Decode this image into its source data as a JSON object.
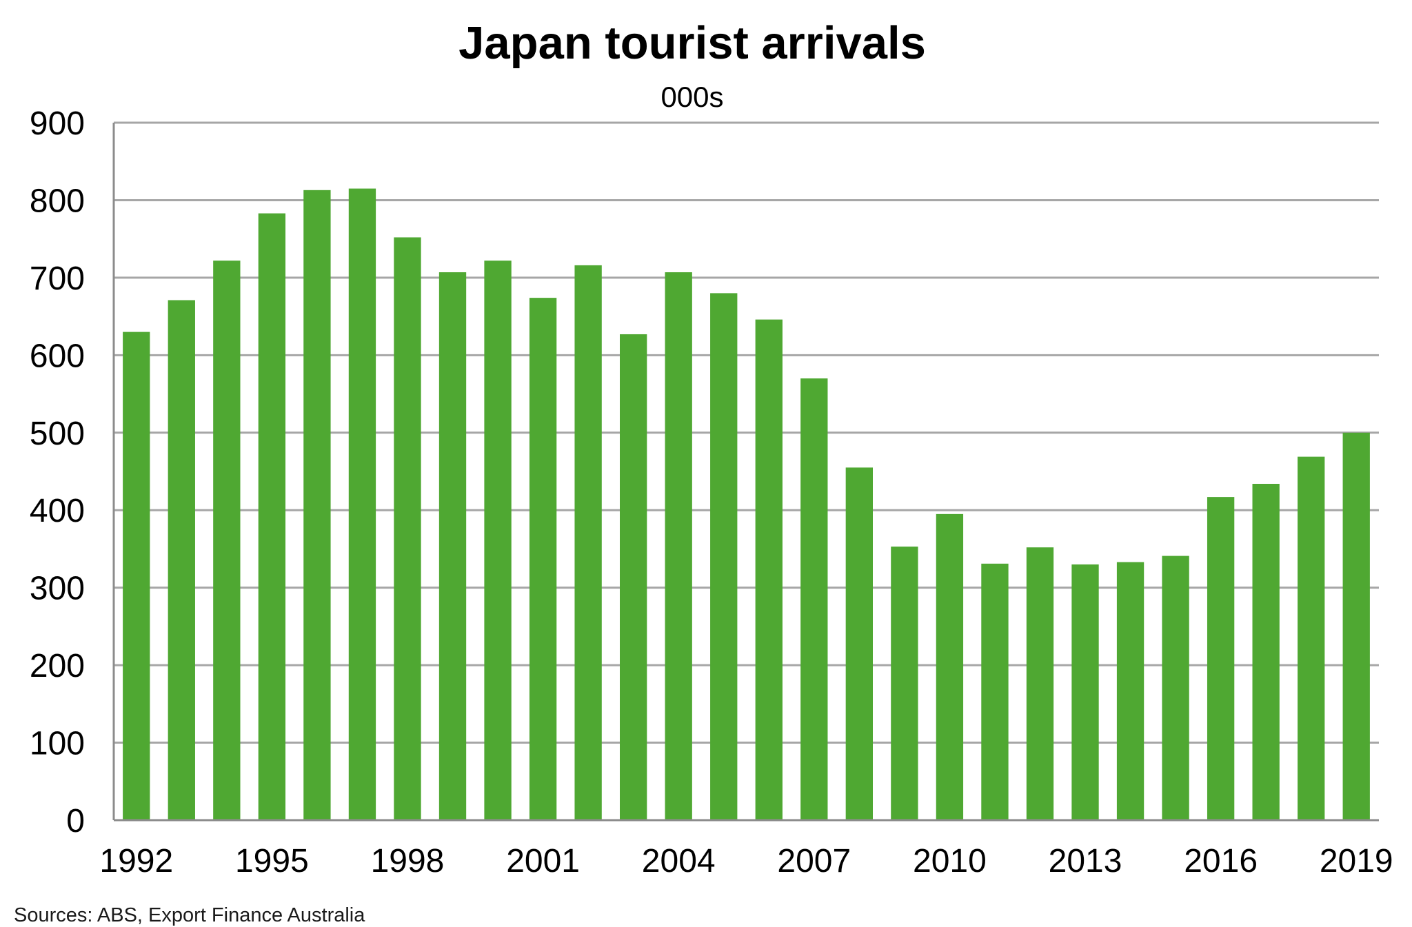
{
  "chart_data": {
    "type": "bar",
    "title": "Japan tourist arrivals",
    "subtitle": "000s",
    "xlabel": "",
    "ylabel": "",
    "ylim": [
      0,
      900
    ],
    "yticks": [
      0,
      100,
      200,
      300,
      400,
      500,
      600,
      700,
      800,
      900
    ],
    "xtick_labels": [
      "1992",
      "1995",
      "1998",
      "2001",
      "2004",
      "2007",
      "2010",
      "2013",
      "2016",
      "2019"
    ],
    "grid": true,
    "legend": "none",
    "bar_color": "#4fa832",
    "categories": [
      "1992",
      "1993",
      "1994",
      "1995",
      "1996",
      "1997",
      "1998",
      "1999",
      "2000",
      "2001",
      "2002",
      "2003",
      "2004",
      "2005",
      "2006",
      "2007",
      "2008",
      "2009",
      "2010",
      "2011",
      "2012",
      "2013",
      "2014",
      "2015",
      "2016",
      "2017",
      "2018",
      "2019"
    ],
    "values": [
      630,
      671,
      722,
      783,
      813,
      815,
      752,
      707,
      722,
      674,
      716,
      627,
      707,
      680,
      646,
      570,
      455,
      353,
      395,
      331,
      352,
      330,
      333,
      341,
      417,
      434,
      469,
      500
    ]
  },
  "source": "Sources: ABS, Export Finance Australia"
}
